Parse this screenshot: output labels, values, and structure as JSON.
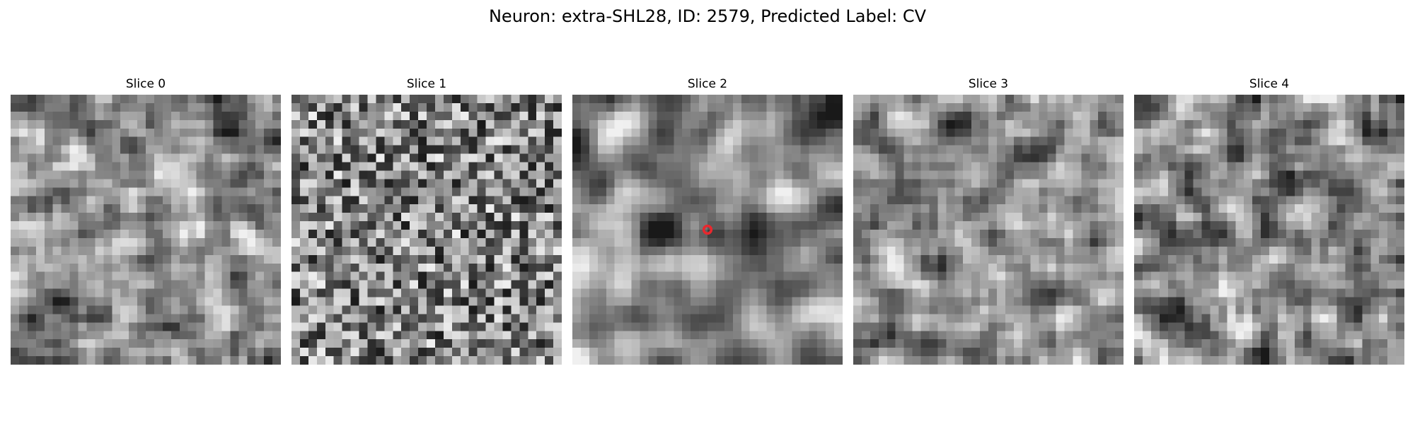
{
  "figure": {
    "title": "Neuron: extra-SHL28, ID: 2579, Predicted Label: CV"
  },
  "panels": [
    {
      "label": "Slice 0",
      "seed": 11,
      "smooth": 1,
      "contrast": 1.15,
      "marker": false
    },
    {
      "label": "Slice 1",
      "seed": 23,
      "smooth": 0,
      "contrast": 1.0,
      "marker": false
    },
    {
      "label": "Slice 2",
      "seed": 37,
      "smooth": 2,
      "contrast": 1.35,
      "marker": true
    },
    {
      "label": "Slice 3",
      "seed": 41,
      "smooth": 1,
      "contrast": 1.05,
      "marker": false
    },
    {
      "label": "Slice 4",
      "seed": 59,
      "smooth": 1,
      "contrast": 1.2,
      "marker": false
    }
  ],
  "image": {
    "grid": 32,
    "marker_color": "#e8282e"
  }
}
